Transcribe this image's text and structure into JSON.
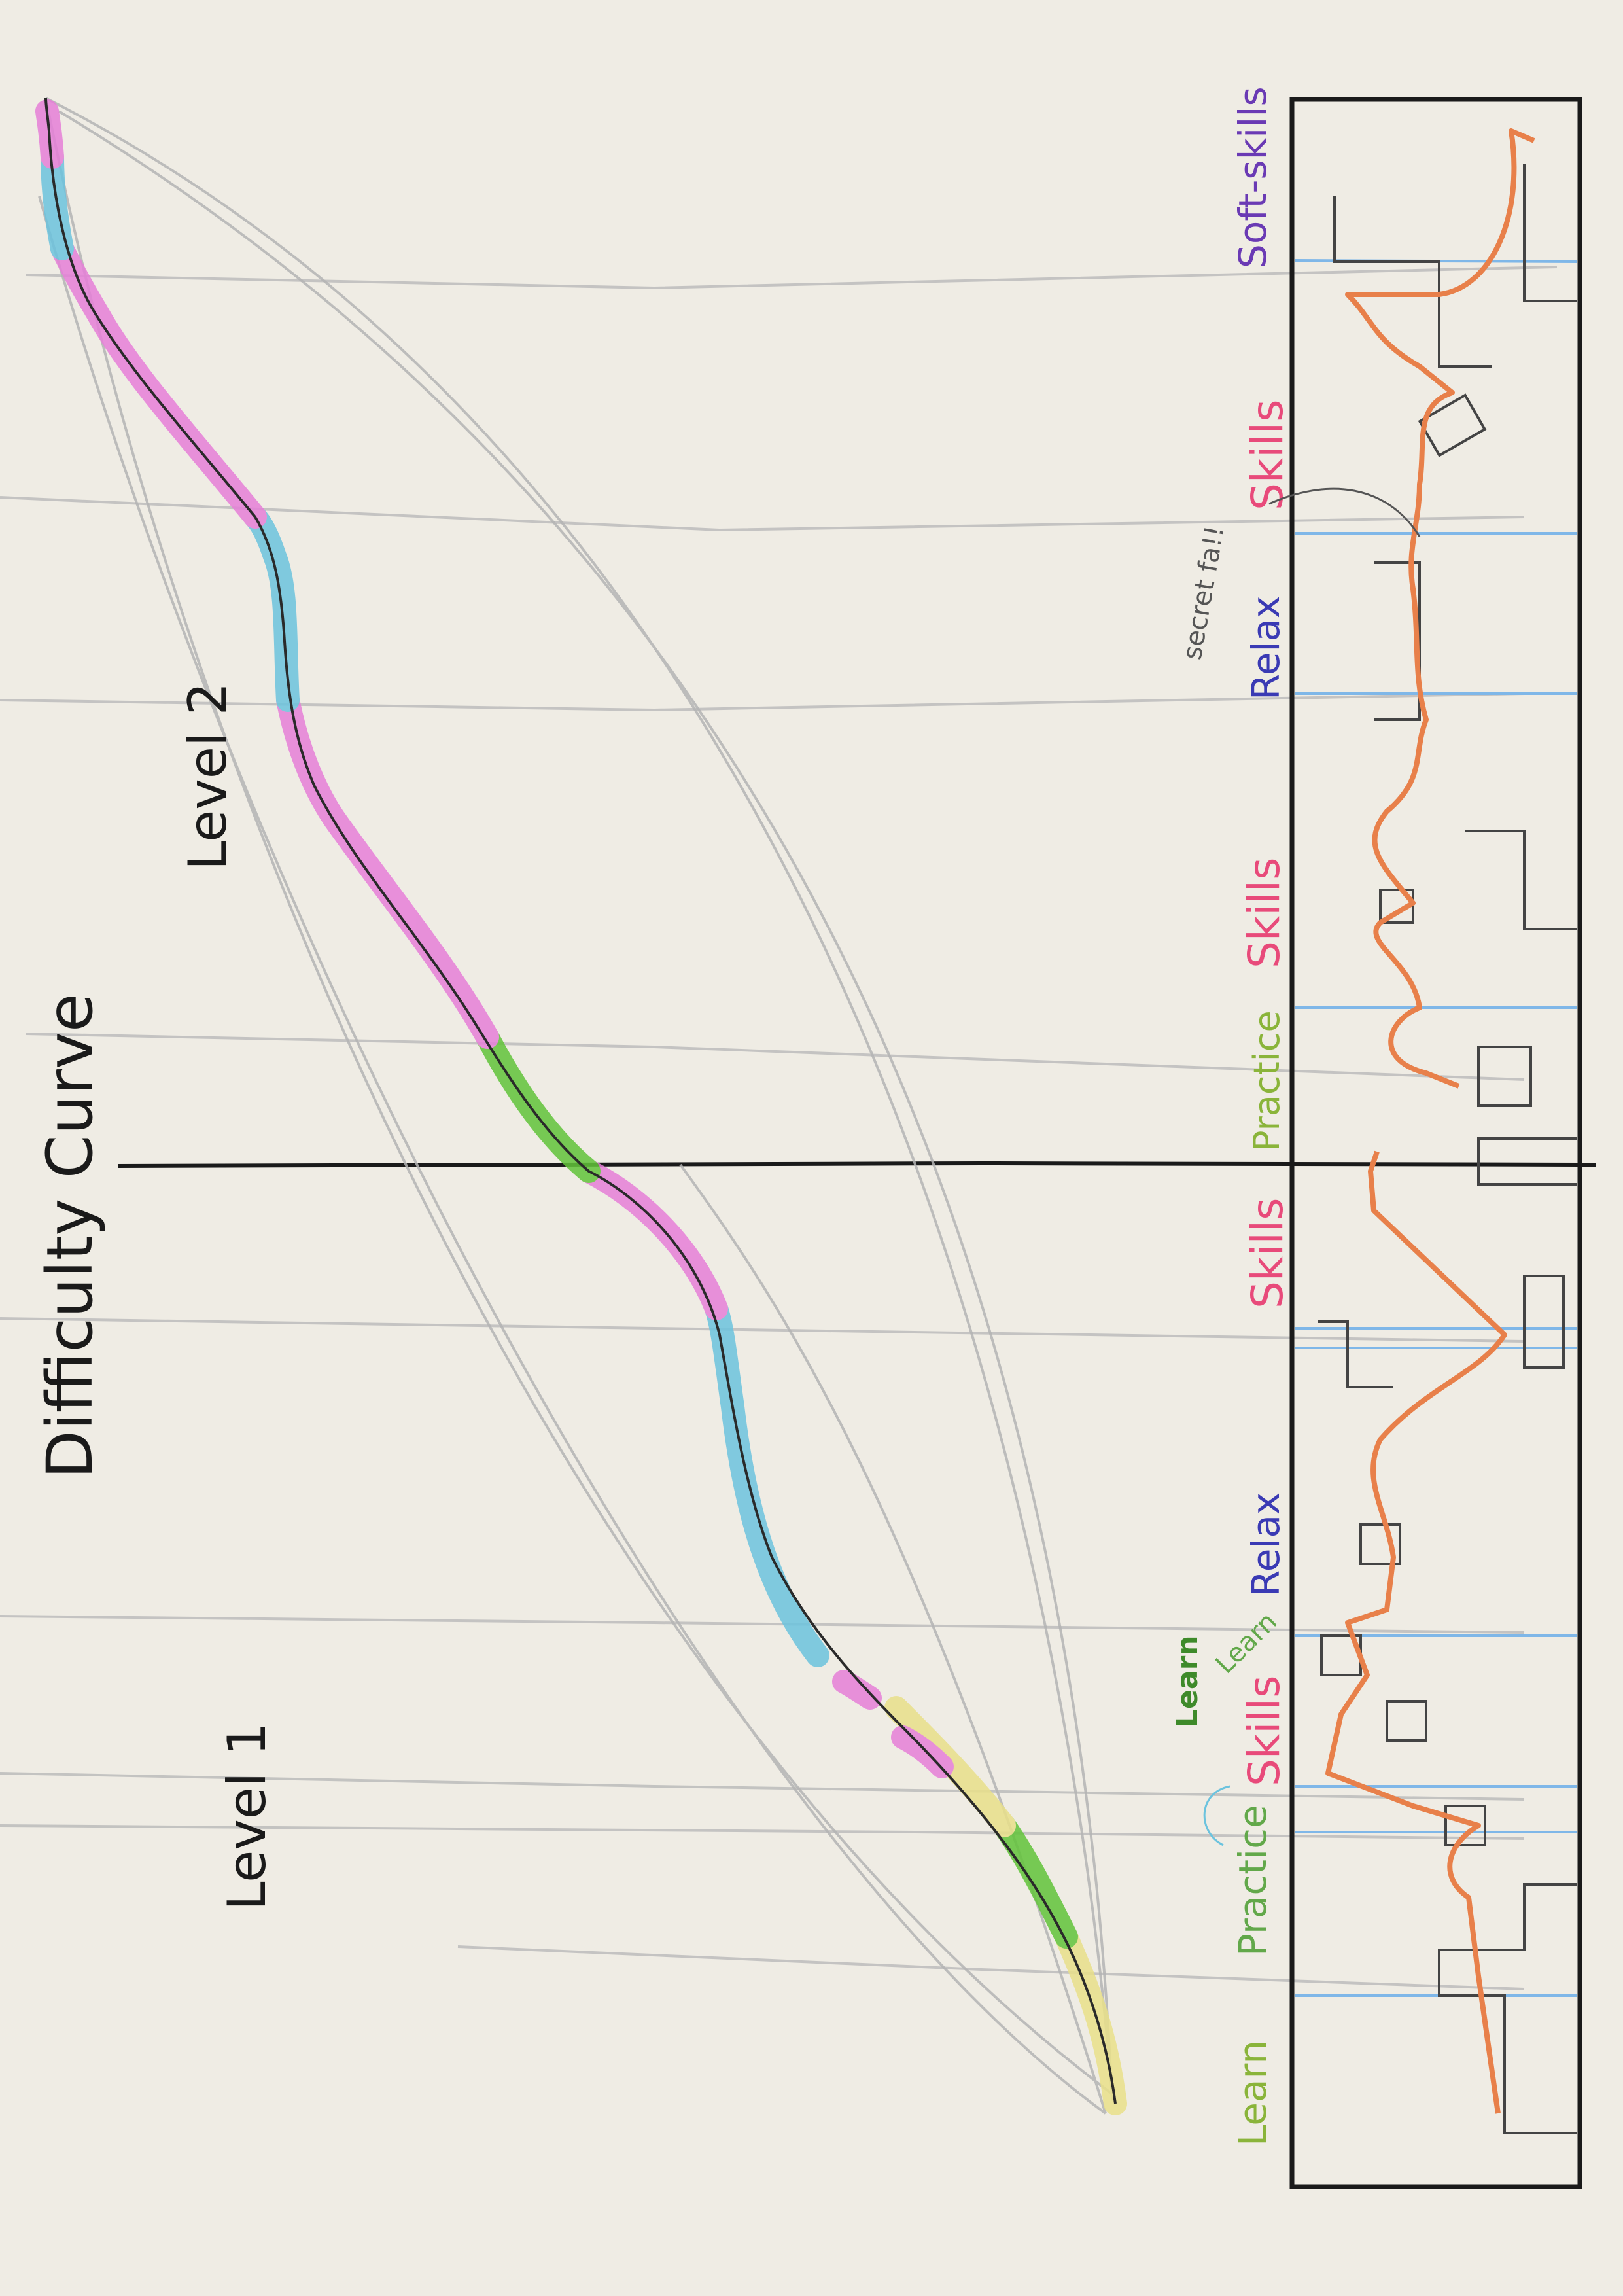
{
  "title": "Difficulty Curve",
  "levels": [
    "Level 1",
    "Level 2"
  ],
  "phase_labels": [
    {
      "text": "Learn",
      "kind": "learn"
    },
    {
      "text": "Practice",
      "kind": "practice"
    },
    {
      "text": "Skills",
      "kind": "skills"
    },
    {
      "text": "Relax",
      "kind": "relax"
    },
    {
      "text": "Skills",
      "kind": "skills"
    },
    {
      "text": "Practice",
      "kind": "practice"
    },
    {
      "text": "Skills",
      "kind": "skills"
    },
    {
      "text": "Relax",
      "kind": "relax"
    },
    {
      "text": "Skills",
      "kind": "skills"
    },
    {
      "text": "Soft-skills",
      "kind": "soft"
    }
  ],
  "side_notes": {
    "learn_a": "Learn",
    "learn_b": "Learn",
    "secret": "secret fa!!"
  },
  "colors": {
    "paper": "#efece4",
    "pencil": "#b8b8b8",
    "ink": "#1a1a1a",
    "learn": "#e9e08a",
    "practice": "#62c43a",
    "skills": "#e67fd8",
    "relax": "#6cc3de",
    "path": "#e8804a",
    "blue_line": "#7fb7e8",
    "label_learn": "#8ab43a",
    "label_practice": "#62a84a",
    "label_skills": "#e84a7a",
    "label_relax": "#3a3ab4",
    "label_soft": "#6a3ab4"
  }
}
